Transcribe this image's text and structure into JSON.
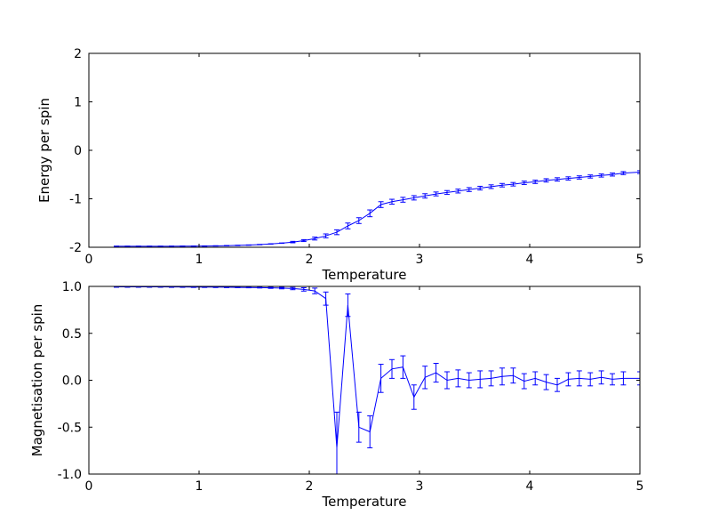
{
  "figure": {
    "background": "#ffffff",
    "line_color": "#0000ff",
    "axis_color": "#000000"
  },
  "chart_data": [
    {
      "type": "line",
      "title": "",
      "xlabel": "Temperature",
      "ylabel": "Energy per spin",
      "xlim": [
        0,
        5
      ],
      "ylim": [
        -2,
        2
      ],
      "grid": false,
      "legend": "none",
      "xticks": [
        0,
        1,
        2,
        3,
        4,
        5
      ],
      "xtick_labels": [
        "0",
        "1",
        "2",
        "3",
        "4",
        "5"
      ],
      "yticks": [
        -2,
        -1,
        0,
        1,
        2
      ],
      "ytick_labels": [
        "-2",
        "-1",
        "0",
        "1",
        "2"
      ],
      "series": [
        {
          "name": "energy-per-spin",
          "marker": "errorbar",
          "x": [
            0.25,
            0.35,
            0.45,
            0.55,
            0.65,
            0.75,
            0.85,
            0.95,
            1.05,
            1.15,
            1.25,
            1.35,
            1.45,
            1.55,
            1.65,
            1.75,
            1.85,
            1.95,
            2.05,
            2.15,
            2.25,
            2.35,
            2.45,
            2.55,
            2.65,
            2.75,
            2.85,
            2.95,
            3.05,
            3.15,
            3.25,
            3.35,
            3.45,
            3.55,
            3.65,
            3.75,
            3.85,
            3.95,
            4.05,
            4.15,
            4.25,
            4.35,
            4.45,
            4.55,
            4.65,
            4.75,
            4.85,
            5.0
          ],
          "y": [
            -1.98,
            -1.98,
            -1.98,
            -1.98,
            -1.98,
            -1.979,
            -1.978,
            -1.977,
            -1.975,
            -1.972,
            -1.968,
            -1.962,
            -1.955,
            -1.945,
            -1.932,
            -1.915,
            -1.893,
            -1.862,
            -1.82,
            -1.765,
            -1.69,
            -1.56,
            -1.45,
            -1.3,
            -1.12,
            -1.06,
            -1.02,
            -0.98,
            -0.94,
            -0.9,
            -0.87,
            -0.84,
            -0.81,
            -0.78,
            -0.75,
            -0.72,
            -0.7,
            -0.67,
            -0.65,
            -0.62,
            -0.6,
            -0.58,
            -0.56,
            -0.54,
            -0.52,
            -0.5,
            -0.47,
            -0.45
          ],
          "yerr": [
            0.004,
            0.004,
            0.004,
            0.004,
            0.004,
            0.004,
            0.004,
            0.004,
            0.004,
            0.004,
            0.004,
            0.004,
            0.004,
            0.004,
            0.004,
            0.004,
            0.015,
            0.02,
            0.03,
            0.04,
            0.05,
            0.06,
            0.06,
            0.07,
            0.06,
            0.05,
            0.05,
            0.045,
            0.045,
            0.04,
            0.04,
            0.04,
            0.04,
            0.038,
            0.038,
            0.036,
            0.036,
            0.035,
            0.035,
            0.034,
            0.034,
            0.033,
            0.033,
            0.032,
            0.032,
            0.031,
            0.031,
            0.03
          ]
        }
      ]
    },
    {
      "type": "line",
      "title": "",
      "xlabel": "Temperature",
      "ylabel": "Magnetisation per spin",
      "xlim": [
        0,
        5
      ],
      "ylim": [
        -1,
        1
      ],
      "grid": false,
      "legend": "none",
      "xticks": [
        0,
        1,
        2,
        3,
        4,
        5
      ],
      "xtick_labels": [
        "0",
        "1",
        "2",
        "3",
        "4",
        "5"
      ],
      "yticks": [
        -1.0,
        -0.5,
        0.0,
        0.5,
        1.0
      ],
      "ytick_labels": [
        "-1.0",
        "-0.5",
        "0.0",
        "0.5",
        "1.0"
      ],
      "series": [
        {
          "name": "magnetisation-per-spin",
          "marker": "errorbar",
          "x": [
            0.25,
            0.35,
            0.45,
            0.55,
            0.65,
            0.75,
            0.85,
            0.95,
            1.05,
            1.15,
            1.25,
            1.35,
            1.45,
            1.55,
            1.65,
            1.75,
            1.85,
            1.95,
            2.05,
            2.15,
            2.25,
            2.35,
            2.45,
            2.55,
            2.65,
            2.75,
            2.85,
            2.95,
            3.05,
            3.15,
            3.25,
            3.35,
            3.45,
            3.55,
            3.65,
            3.75,
            3.85,
            3.95,
            4.05,
            4.15,
            4.25,
            4.35,
            4.45,
            4.55,
            4.65,
            4.75,
            4.85,
            5.0
          ],
          "y": [
            0.995,
            0.995,
            0.995,
            0.995,
            0.995,
            0.994,
            0.994,
            0.993,
            0.993,
            0.992,
            0.991,
            0.99,
            0.989,
            0.987,
            0.985,
            0.982,
            0.977,
            0.968,
            0.952,
            0.87,
            -0.72,
            0.8,
            -0.5,
            -0.55,
            0.02,
            0.12,
            0.14,
            -0.18,
            0.03,
            0.08,
            0.0,
            0.02,
            0.0,
            0.01,
            0.02,
            0.04,
            0.05,
            -0.01,
            0.02,
            -0.02,
            -0.05,
            0.01,
            0.02,
            0.01,
            0.03,
            0.01,
            0.02,
            0.02
          ],
          "yerr": [
            0.004,
            0.004,
            0.004,
            0.004,
            0.004,
            0.004,
            0.004,
            0.004,
            0.004,
            0.004,
            0.004,
            0.004,
            0.004,
            0.004,
            0.006,
            0.008,
            0.012,
            0.018,
            0.03,
            0.07,
            0.38,
            0.12,
            0.16,
            0.17,
            0.15,
            0.1,
            0.12,
            0.13,
            0.12,
            0.1,
            0.09,
            0.09,
            0.08,
            0.09,
            0.08,
            0.09,
            0.08,
            0.08,
            0.07,
            0.08,
            0.07,
            0.07,
            0.08,
            0.07,
            0.07,
            0.06,
            0.07,
            0.07
          ]
        }
      ]
    }
  ]
}
